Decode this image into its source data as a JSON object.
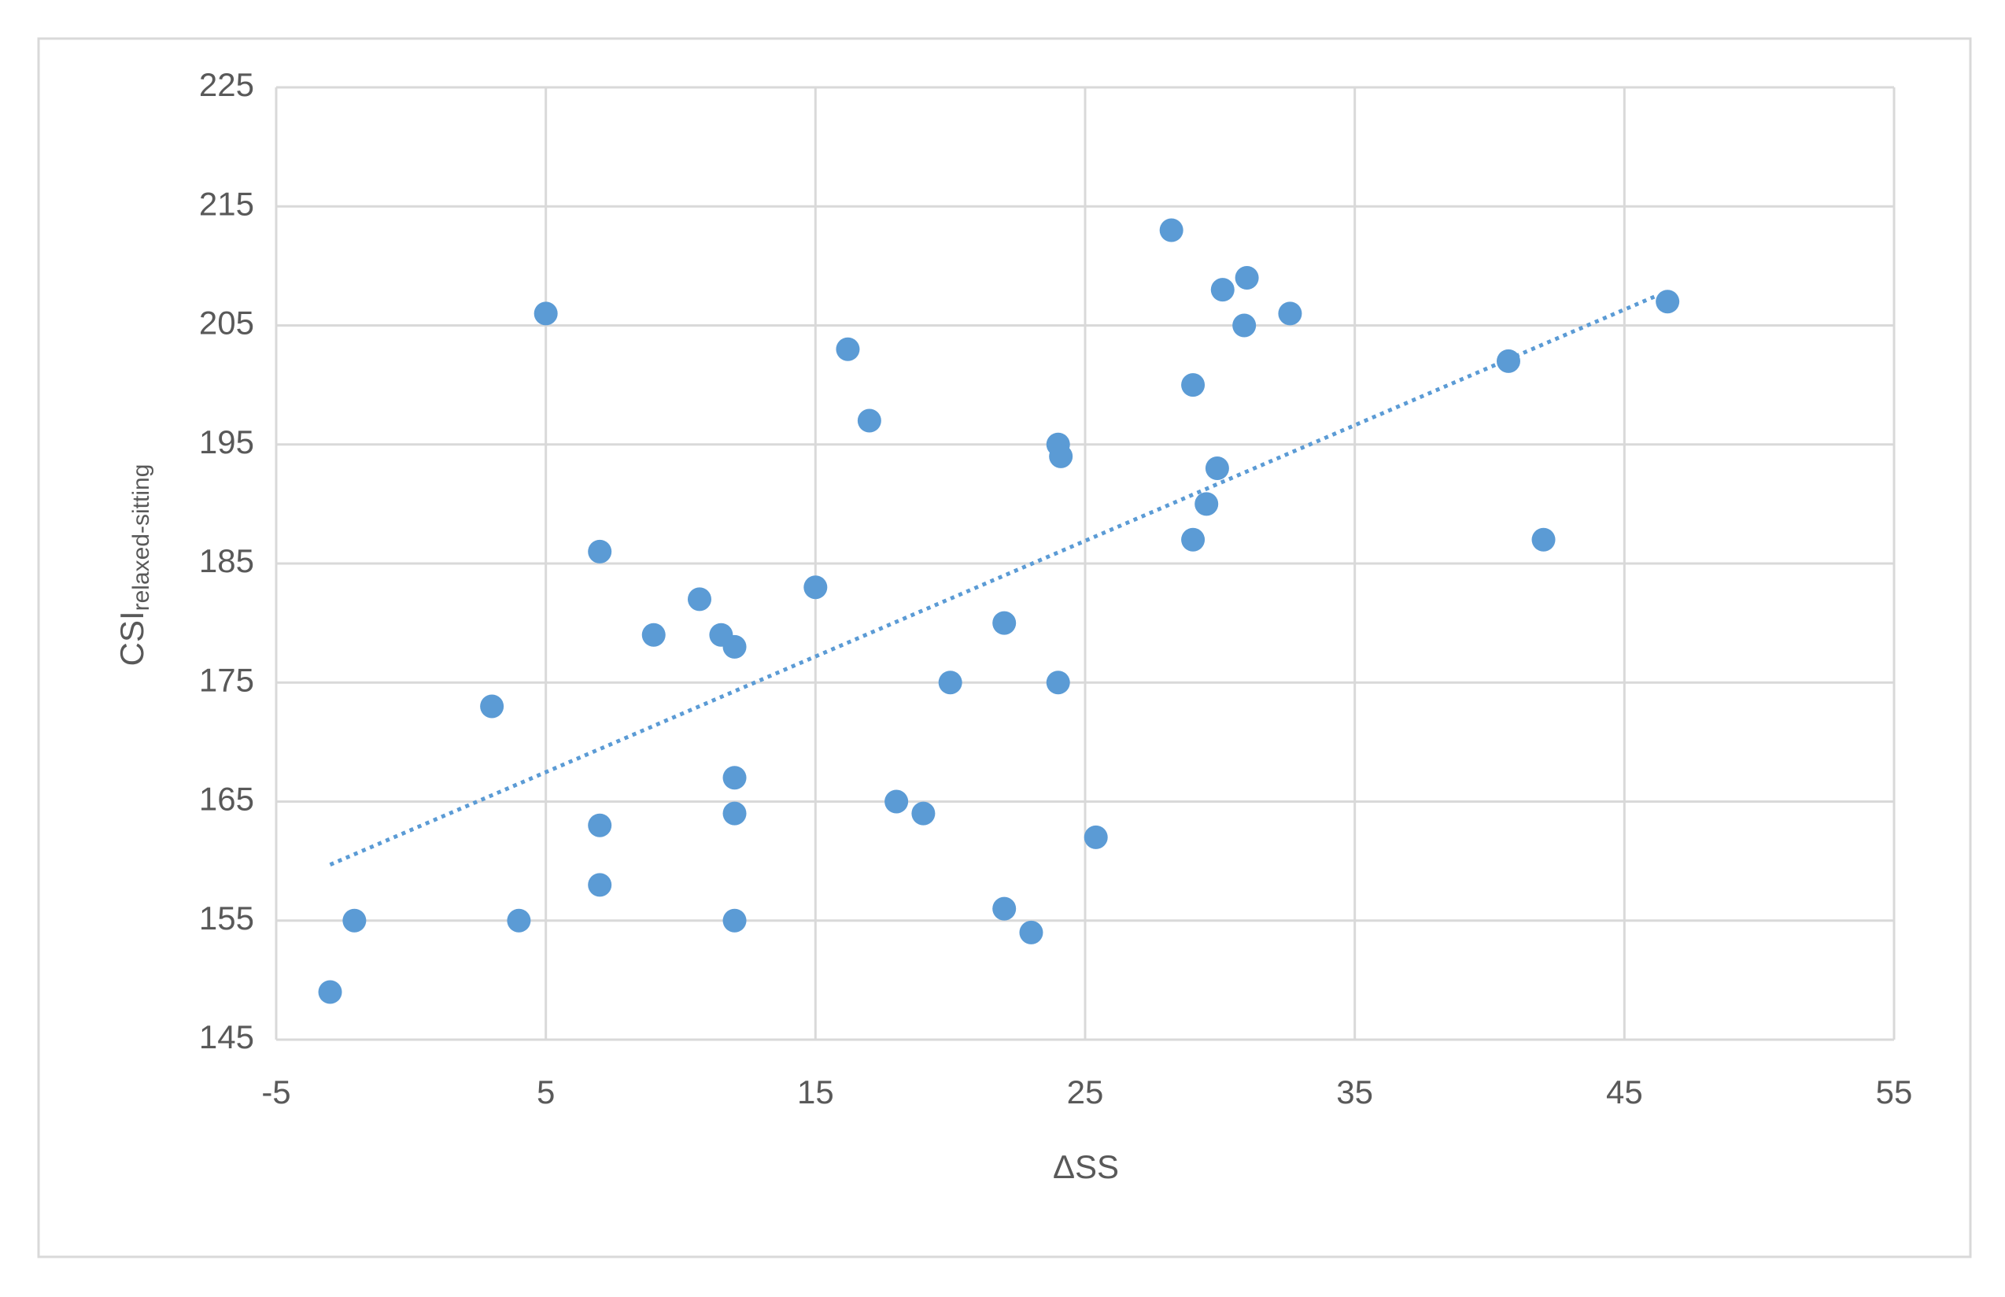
{
  "chart_data": {
    "type": "scatter",
    "x_label": "ΔSS",
    "y_label": {
      "main": "CSI",
      "sub": "relaxed-sitting"
    },
    "series": [
      {
        "color": "#5b9bd5",
        "x": [
          -3,
          -2.1,
          3,
          4,
          5,
          7,
          7,
          7,
          9,
          10.7,
          11.5,
          12,
          12,
          12,
          12,
          15,
          16.2,
          17,
          18,
          19,
          20,
          22,
          22,
          23,
          24,
          24.1,
          24,
          25.4,
          28.2,
          29,
          29,
          29.9,
          29.5,
          30.1,
          30.9,
          31,
          32.6,
          40.7,
          42,
          46.6
        ],
        "values": [
          149,
          155,
          173,
          155,
          206,
          186,
          163,
          158,
          179,
          182,
          179,
          178,
          167,
          164,
          155,
          183,
          203,
          197,
          165,
          164,
          175,
          180,
          156,
          154,
          195,
          194,
          175,
          162,
          213,
          200,
          187,
          193,
          190,
          208,
          205,
          209,
          206,
          202,
          187,
          207
        ]
      }
    ],
    "trendline": {
      "x": [
        -3,
        46.2
      ],
      "values": [
        159.7,
        207.5
      ],
      "color": "#5b9bd5",
      "style": "dotted"
    },
    "xlim": [
      -5,
      55
    ],
    "xticks": [
      -5,
      5,
      15,
      25,
      35,
      45,
      55
    ],
    "ylim": [
      145,
      225
    ],
    "yticks": [
      145,
      155,
      165,
      175,
      185,
      195,
      205,
      215,
      225
    ],
    "grid": true
  }
}
